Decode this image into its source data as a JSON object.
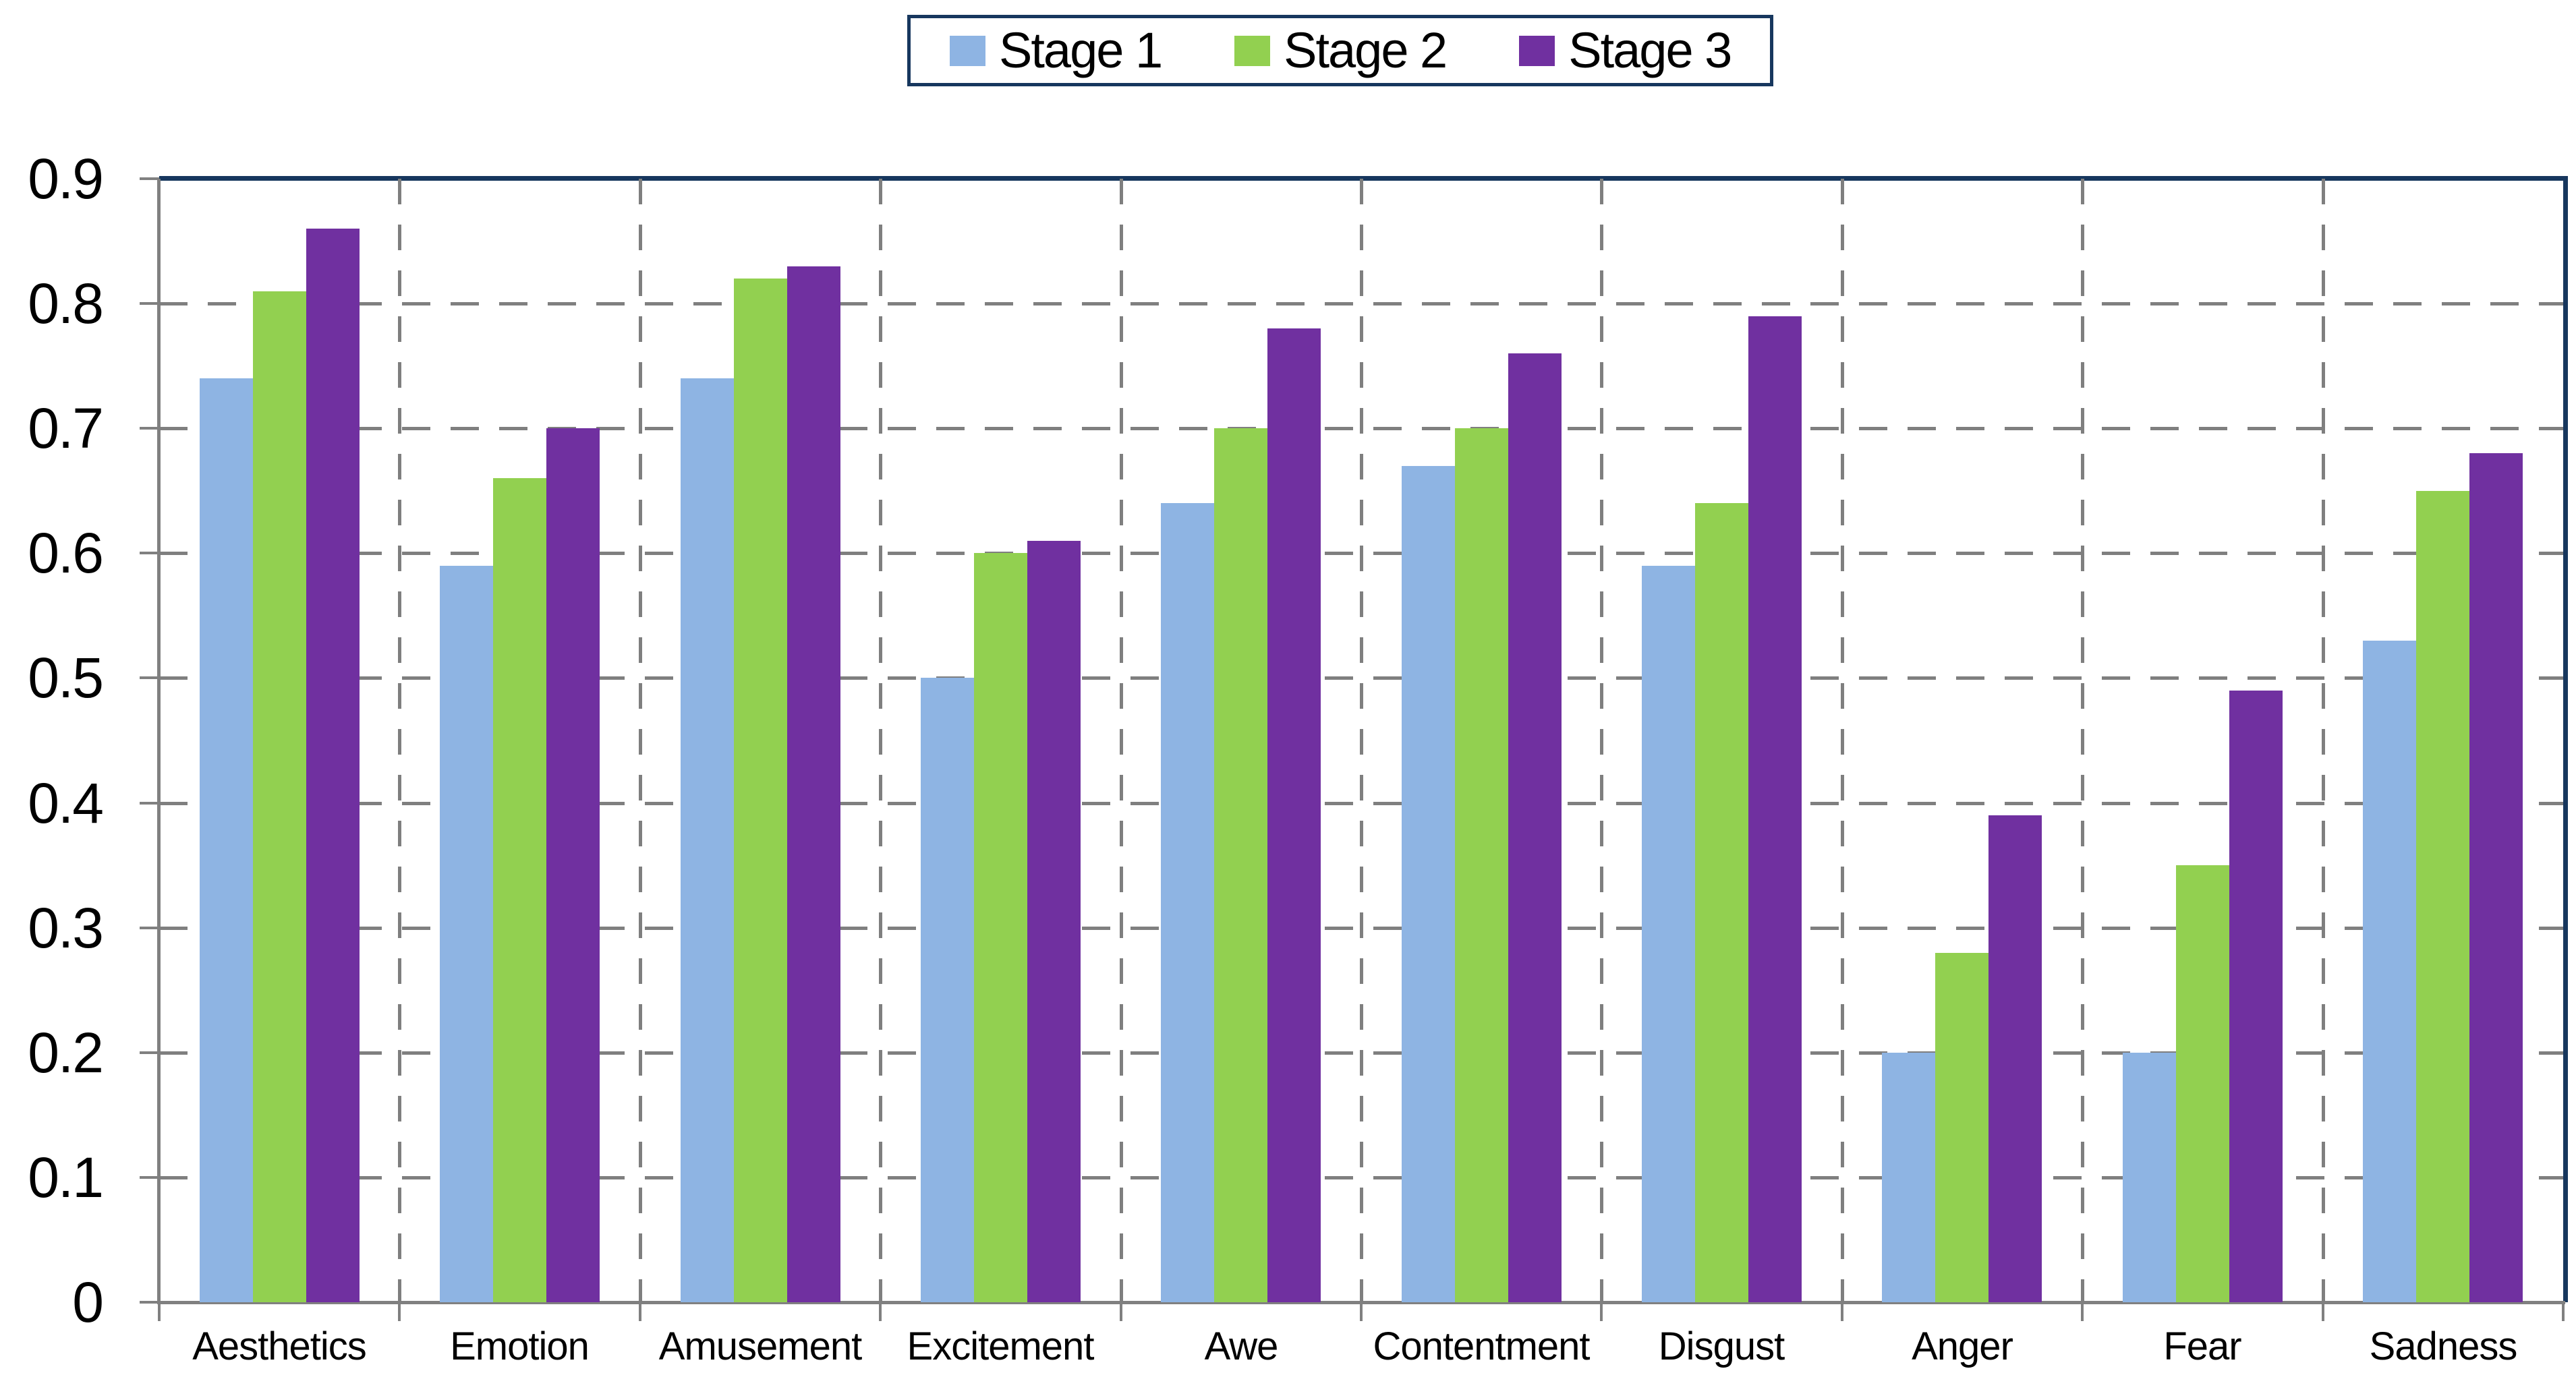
{
  "chart_data": {
    "type": "bar",
    "title": "",
    "categories": [
      "Aesthetics",
      "Emotion",
      "Amusement",
      "Excitement",
      "Awe",
      "Contentment",
      "Disgust",
      "Anger",
      "Fear",
      "Sadness"
    ],
    "series": [
      {
        "name": "Stage 1",
        "color": "#8EB4E3",
        "values": [
          0.74,
          0.59,
          0.74,
          0.5,
          0.64,
          0.67,
          0.59,
          0.2,
          0.2,
          0.53
        ]
      },
      {
        "name": "Stage 2",
        "color": "#92D050",
        "values": [
          0.81,
          0.66,
          0.82,
          0.6,
          0.7,
          0.7,
          0.64,
          0.28,
          0.35,
          0.65
        ]
      },
      {
        "name": "Stage 3",
        "color": "#7030A0",
        "values": [
          0.86,
          0.7,
          0.83,
          0.61,
          0.78,
          0.76,
          0.79,
          0.39,
          0.49,
          0.68
        ]
      }
    ],
    "ylim": [
      0,
      0.9
    ],
    "ytick_step": 0.1,
    "ytick_labels": [
      "0",
      "0.1",
      "0.2",
      "0.3",
      "0.4",
      "0.5",
      "0.6",
      "0.7",
      "0.8",
      "0.9"
    ],
    "xlabel": "",
    "ylabel": "",
    "grid": {
      "horizontal": true,
      "vertical": true,
      "style": "dashed",
      "color": "#7F7F7F"
    },
    "legend_position": "top-center",
    "colors": {
      "plot_border": "#17375E",
      "axis": "#808080",
      "gridline": "#7F7F7F",
      "text": "#000000",
      "background": "#FFFFFF"
    }
  }
}
